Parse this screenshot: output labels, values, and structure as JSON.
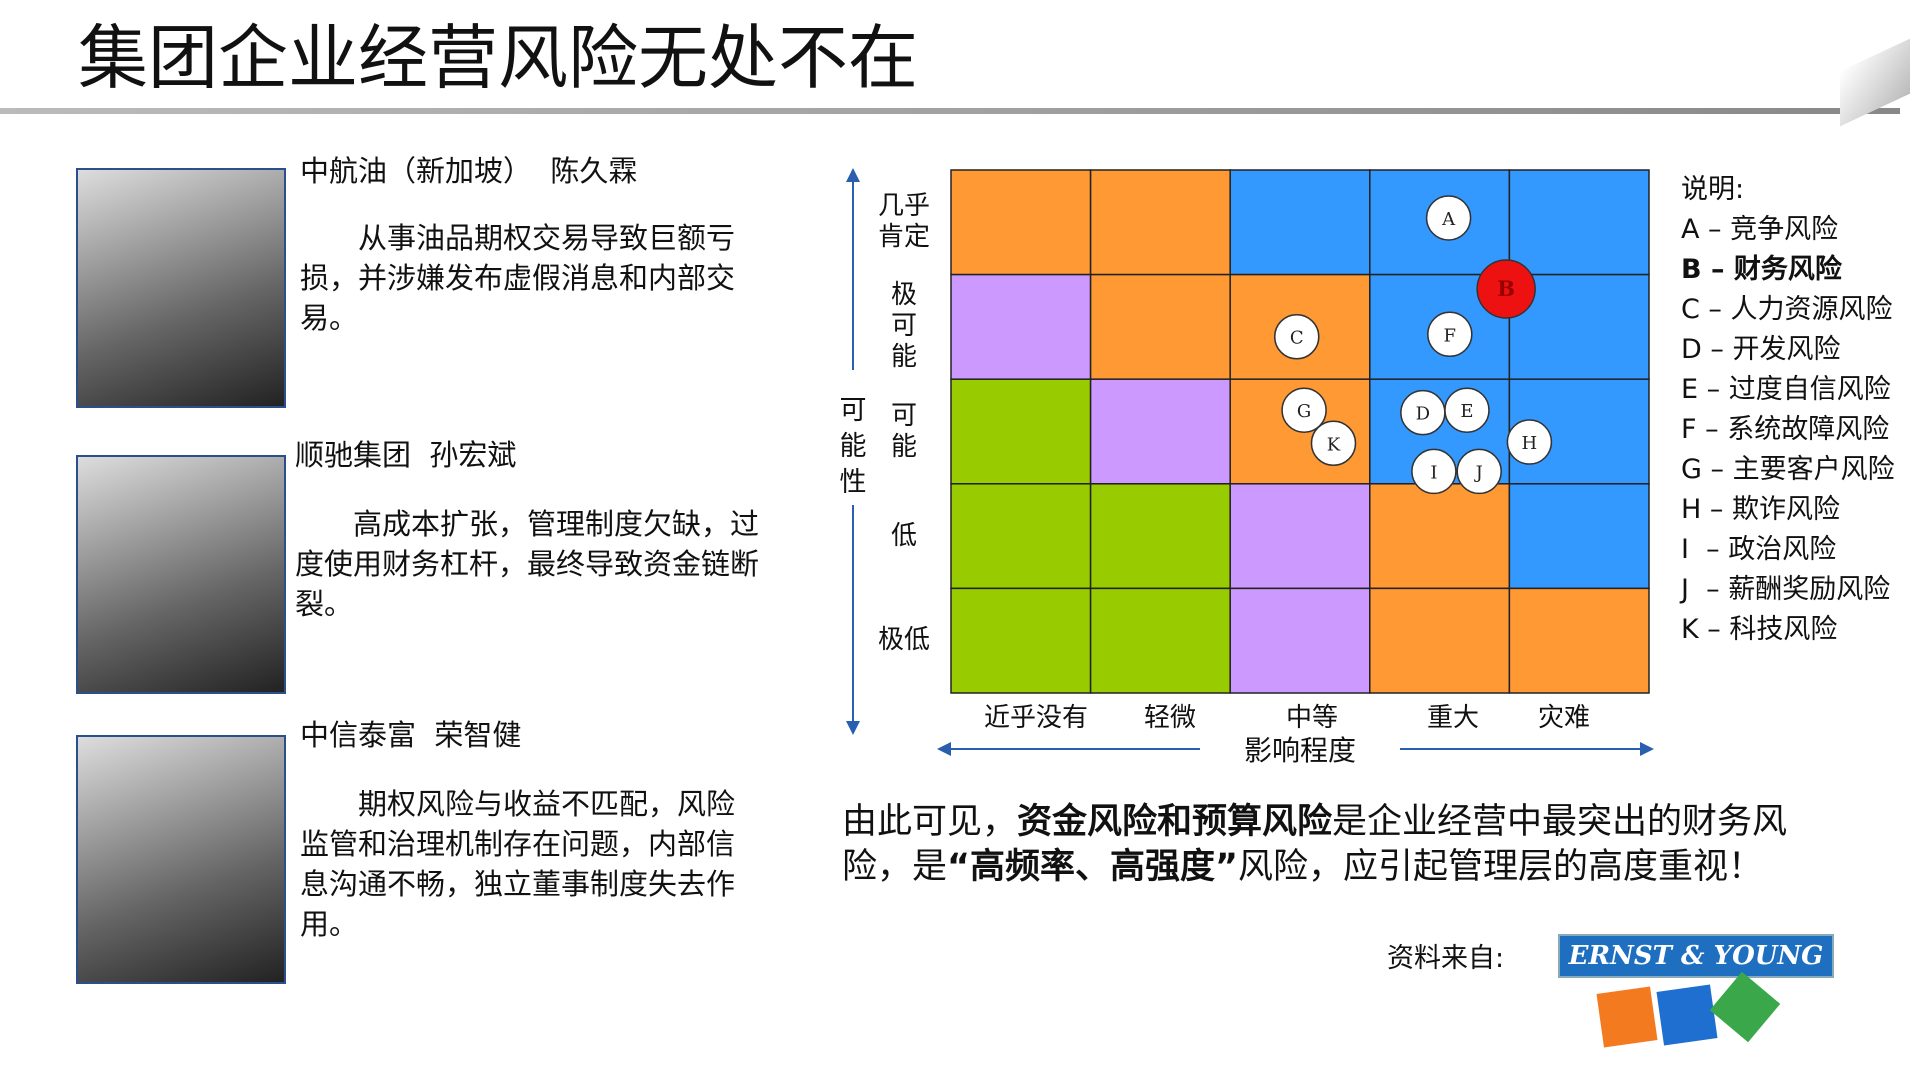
{
  "header": {
    "title": "集团企业经营风险无处不在"
  },
  "cases": [
    {
      "title": "中航油（新加坡）  陈久霖",
      "text": "从事油品期权交易导致巨额亏损，并涉嫌发布虚假消息和内部交易。"
    },
    {
      "title": "顺驰集团  孙宏斌",
      "text": "高成本扩张，管理制度欠缺，过度使用财务杠杆，最终导致资金链断裂。"
    },
    {
      "title": "中信泰富  荣智健",
      "text": "期权风险与收益不匹配，风险监管和治理机制存在问题，内部信息沟通不畅，独立董事制度失去作用。"
    }
  ],
  "matrix": {
    "y_axis_label": "可能性",
    "x_axis_label": "影响程度",
    "rows": [
      "几乎肯定",
      "极可能",
      "可能",
      "低",
      "极低"
    ],
    "columns": [
      "近乎没有",
      "轻微",
      "中等",
      "重大",
      "灾难"
    ],
    "cells": [
      [
        "#ff9933",
        "#ff9933",
        "#3399ff",
        "#3399ff",
        "#3399ff"
      ],
      [
        "#cc99ff",
        "#ff9933",
        "#ff9933",
        "#3399ff",
        "#3399ff"
      ],
      [
        "#99cc00",
        "#cc99ff",
        "#ff9933",
        "#3399ff",
        "#3399ff"
      ],
      [
        "#99cc00",
        "#99cc00",
        "#cc99ff",
        "#ff9933",
        "#3399ff"
      ],
      [
        "#99cc00",
        "#99cc00",
        "#cc99ff",
        "#ff9933",
        "#ff9933"
      ]
    ],
    "points": [
      "A",
      "B",
      "C",
      "D",
      "E",
      "F",
      "G",
      "H",
      "I",
      "J",
      "K"
    ],
    "highlight_point": "B"
  },
  "legend": {
    "title": "说明:",
    "items": [
      {
        "text": "A – 竞争风险",
        "bold": false
      },
      {
        "text": "B – 财务风险",
        "bold": true
      },
      {
        "text": "C – 人力资源风险",
        "bold": false
      },
      {
        "text": "D – 开发风险",
        "bold": false
      },
      {
        "text": "E – 过度自信风险",
        "bold": false
      },
      {
        "text": "F – 系统故障风险",
        "bold": false
      },
      {
        "text": "G – 主要客户风险",
        "bold": false
      },
      {
        "text": "H – 欺诈风险",
        "bold": false
      },
      {
        "text": "I  – 政治风险",
        "bold": false
      },
      {
        "text": "J  – 薪酬奖励风险",
        "bold": false
      },
      {
        "text": "K – 科技风险",
        "bold": false
      }
    ]
  },
  "conclusion": [
    {
      "text": "由此可见，",
      "bold": false
    },
    {
      "text": "资金风险和预算风险",
      "bold": true
    },
    {
      "text": "是企业经营中最突出的财务风险，是",
      "bold": false
    },
    {
      "text": "“高频率、高强度”",
      "bold": true
    },
    {
      "text": "风险，应引起管理层的高度重视！",
      "bold": false
    }
  ],
  "source": {
    "label": "资料来自:",
    "logo": "ERNST & YOUNG"
  }
}
